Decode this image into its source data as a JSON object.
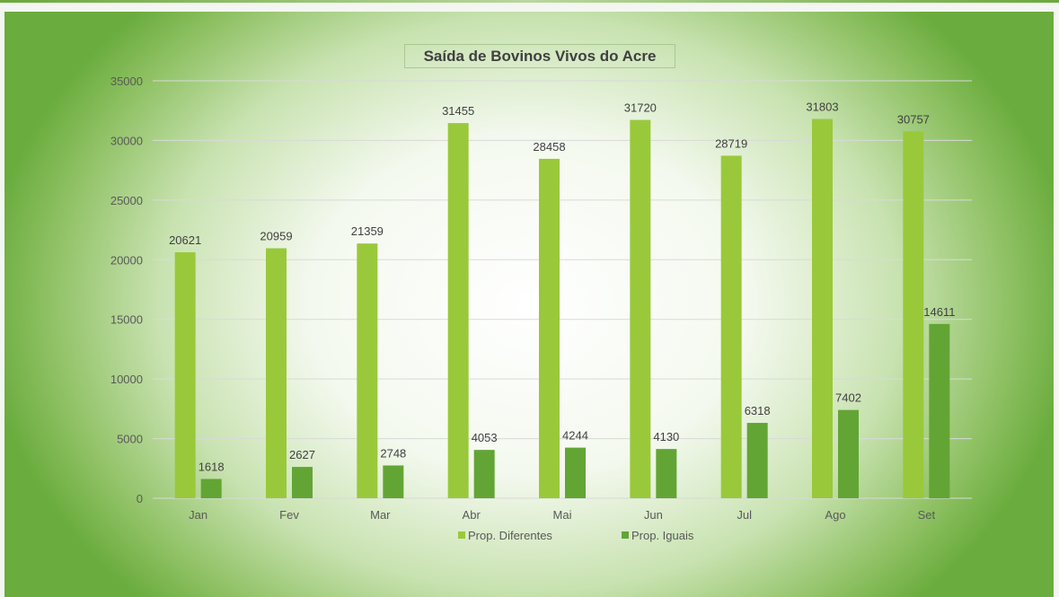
{
  "chart_data": {
    "type": "bar",
    "title": "Saída de Bovinos Vivos do Acre",
    "xlabel": "",
    "ylabel": "",
    "ylim": [
      0,
      35000
    ],
    "yticks": [
      "0",
      "5000",
      "10000",
      "15000",
      "20000",
      "25000",
      "30000",
      "35000"
    ],
    "grid": true,
    "legend_position": "bottom",
    "categories": [
      "Jan",
      "Fev",
      "Mar",
      "Abr",
      "Mai",
      "Jun",
      "Jul",
      "Ago",
      "Set"
    ],
    "series": [
      {
        "name": "Prop. Diferentes",
        "color": "#99c93a",
        "values": [
          20621,
          20959,
          21359,
          31455,
          28458,
          31720,
          28719,
          31803,
          30757
        ]
      },
      {
        "name": "Prop. Iguais",
        "color": "#62a535",
        "values": [
          1618,
          2627,
          2748,
          4053,
          4244,
          4130,
          6318,
          7402,
          14611
        ]
      }
    ]
  }
}
